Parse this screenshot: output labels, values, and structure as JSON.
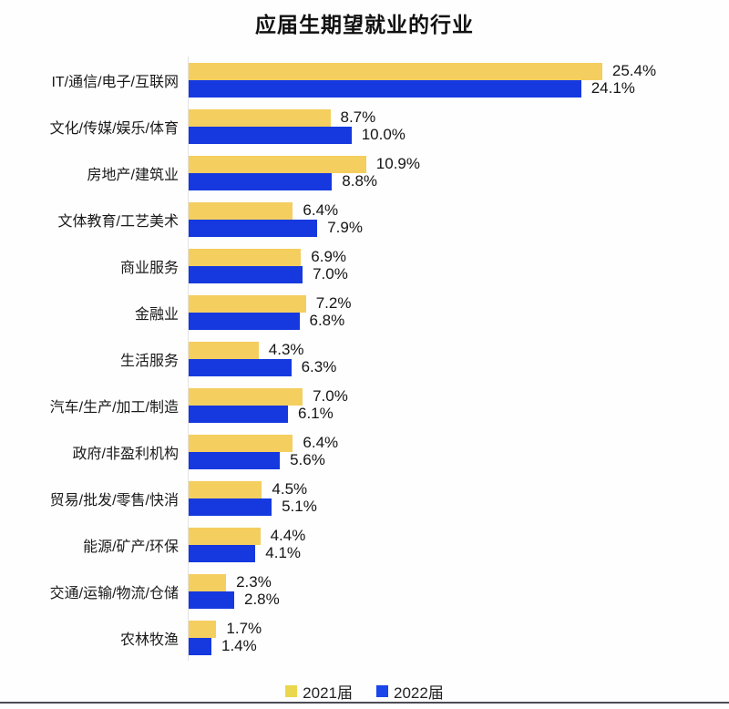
{
  "page": {
    "title": "应届生期望就业的行业"
  },
  "colors": {
    "bar_2021": "#F4CE5F",
    "bar_2022": "#1539DF",
    "legend_2021": "#EBD74E",
    "legend_2022": "#1A46EA",
    "axis_line": "#E3E3E3",
    "bottom_rule": "#4C4C55",
    "text": "#1A1A1A"
  },
  "chart_data": {
    "type": "bar",
    "orientation": "horizontal",
    "title": "应届生期望就业的行业",
    "categories": [
      "IT/通信/电子/互联网",
      "文化/传媒/娱乐/体育",
      "房地产/建筑业",
      "文体教育/工艺美术",
      "商业服务",
      "金融业",
      "生活服务",
      "汽车/生产/加工/制造",
      "政府/非盈利机构",
      "贸易/批发/零售/快消",
      "能源/矿产/环保",
      "交通/运输/物流/仓储",
      "农林牧渔"
    ],
    "series": [
      {
        "name": "2021届",
        "color": "#F4CE5F",
        "values": [
          25.4,
          8.7,
          10.9,
          6.4,
          6.9,
          7.2,
          4.3,
          7.0,
          6.4,
          4.5,
          4.4,
          2.3,
          1.7
        ]
      },
      {
        "name": "2022届",
        "color": "#1539DF",
        "values": [
          24.1,
          10.0,
          8.8,
          7.9,
          7.0,
          6.8,
          6.3,
          6.1,
          5.6,
          5.1,
          4.1,
          2.8,
          1.4
        ]
      }
    ],
    "value_labels": true,
    "value_suffix": "%",
    "xlim": [
      0,
      27
    ],
    "grid": false,
    "legend_position": "bottom"
  },
  "legend": {
    "items": [
      {
        "label": "2021届",
        "color": "#EBD74E"
      },
      {
        "label": "2022届",
        "color": "#1A46EA"
      }
    ]
  }
}
